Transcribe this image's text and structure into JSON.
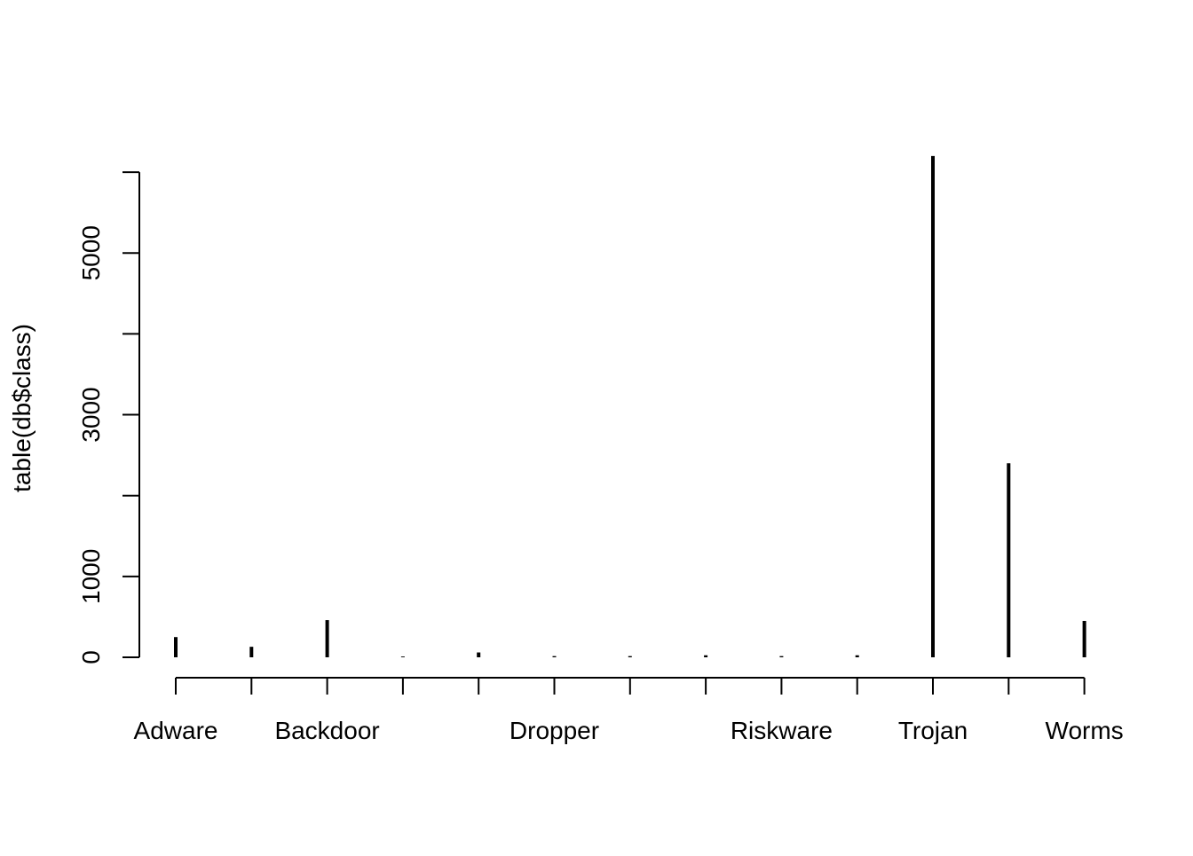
{
  "chart_data": {
    "type": "bar",
    "style": "histogram-lines",
    "categories": [
      "Adware",
      "",
      "Backdoor",
      "",
      "",
      "Dropper",
      "",
      "",
      "Riskware",
      "",
      "Trojan",
      "",
      "Worms"
    ],
    "values": [
      250,
      130,
      460,
      10,
      60,
      15,
      15,
      25,
      15,
      25,
      6200,
      2400,
      450
    ],
    "xlabel": "",
    "ylabel": "table(db$class)",
    "yticks": [
      0,
      1000,
      2000,
      3000,
      4000,
      5000,
      6000
    ],
    "ytick_labels": [
      "0",
      "1000",
      "",
      "3000",
      "",
      "5000",
      ""
    ],
    "ylim": [
      0,
      6200
    ],
    "grid": false,
    "color": "#000000"
  }
}
